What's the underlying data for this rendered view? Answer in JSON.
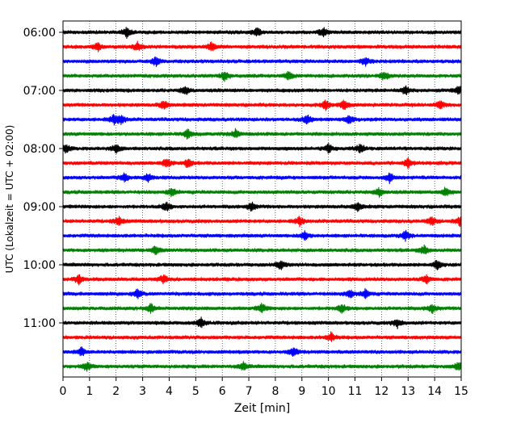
{
  "chart_data": {
    "type": "line",
    "title": "",
    "xlabel": "Zeit  [min]",
    "ylabel": "UTC (Lokalzeit = UTC + 02:00)",
    "xlim": [
      0,
      15
    ],
    "xticks": [
      0,
      1,
      2,
      3,
      4,
      5,
      6,
      7,
      8,
      9,
      10,
      11,
      12,
      13,
      14,
      15
    ],
    "yticks": [
      "06:00",
      "07:00",
      "08:00",
      "09:00",
      "10:00",
      "11:00"
    ],
    "grid": "vertical dotted",
    "trace_interval_minutes": 15,
    "trace_colors": [
      "#000000",
      "#ff0000",
      "#0000ff",
      "#008000"
    ],
    "traces": [
      {
        "start": "06:00",
        "color": "#000000",
        "events": [
          2.4,
          7.3,
          9.8
        ]
      },
      {
        "start": "06:15",
        "color": "#ff0000",
        "events": [
          1.3,
          2.8,
          5.6
        ]
      },
      {
        "start": "06:30",
        "color": "#0000ff",
        "events": [
          3.5,
          11.4
        ]
      },
      {
        "start": "06:45",
        "color": "#008000",
        "events": [
          6.1,
          8.5,
          12.1
        ]
      },
      {
        "start": "07:00",
        "color": "#000000",
        "events": [
          4.6,
          12.9,
          14.9
        ]
      },
      {
        "start": "07:15",
        "color": "#ff0000",
        "events": [
          3.8,
          9.9,
          10.6,
          14.2
        ]
      },
      {
        "start": "07:30",
        "color": "#0000ff",
        "events": [
          1.9,
          2.2,
          9.2,
          10.8
        ]
      },
      {
        "start": "07:45",
        "color": "#008000",
        "events": [
          4.7,
          6.5
        ]
      },
      {
        "start": "08:00",
        "color": "#000000",
        "events": [
          0.1,
          2.0,
          10.0,
          11.2
        ]
      },
      {
        "start": "08:15",
        "color": "#ff0000",
        "events": [
          3.9,
          4.7,
          13.0
        ]
      },
      {
        "start": "08:30",
        "color": "#0000ff",
        "events": [
          2.3,
          3.2,
          12.3
        ]
      },
      {
        "start": "08:45",
        "color": "#008000",
        "events": [
          4.1,
          11.9,
          14.4
        ]
      },
      {
        "start": "09:00",
        "color": "#000000",
        "events": [
          3.9,
          7.1,
          11.1
        ]
      },
      {
        "start": "09:15",
        "color": "#ff0000",
        "events": [
          2.1,
          8.9,
          13.9,
          14.95
        ]
      },
      {
        "start": "09:30",
        "color": "#0000ff",
        "events": [
          9.1,
          12.9
        ]
      },
      {
        "start": "09:45",
        "color": "#008000",
        "events": [
          3.5,
          13.6
        ]
      },
      {
        "start": "10:00",
        "color": "#000000",
        "events": [
          8.2,
          14.1
        ]
      },
      {
        "start": "10:15",
        "color": "#ff0000",
        "events": [
          0.6,
          3.8,
          13.7
        ]
      },
      {
        "start": "10:30",
        "color": "#0000ff",
        "events": [
          2.8,
          10.8,
          11.4
        ]
      },
      {
        "start": "10:45",
        "color": "#008000",
        "events": [
          3.3,
          7.5,
          10.5,
          13.9
        ]
      },
      {
        "start": "11:00",
        "color": "#000000",
        "events": [
          5.2,
          12.6
        ]
      },
      {
        "start": "11:15",
        "color": "#ff0000",
        "events": [
          10.1
        ]
      },
      {
        "start": "11:30",
        "color": "#0000ff",
        "events": [
          0.7,
          8.7
        ]
      },
      {
        "start": "11:45",
        "color": "#008000",
        "events": [
          0.9,
          6.8,
          14.9
        ]
      }
    ]
  }
}
